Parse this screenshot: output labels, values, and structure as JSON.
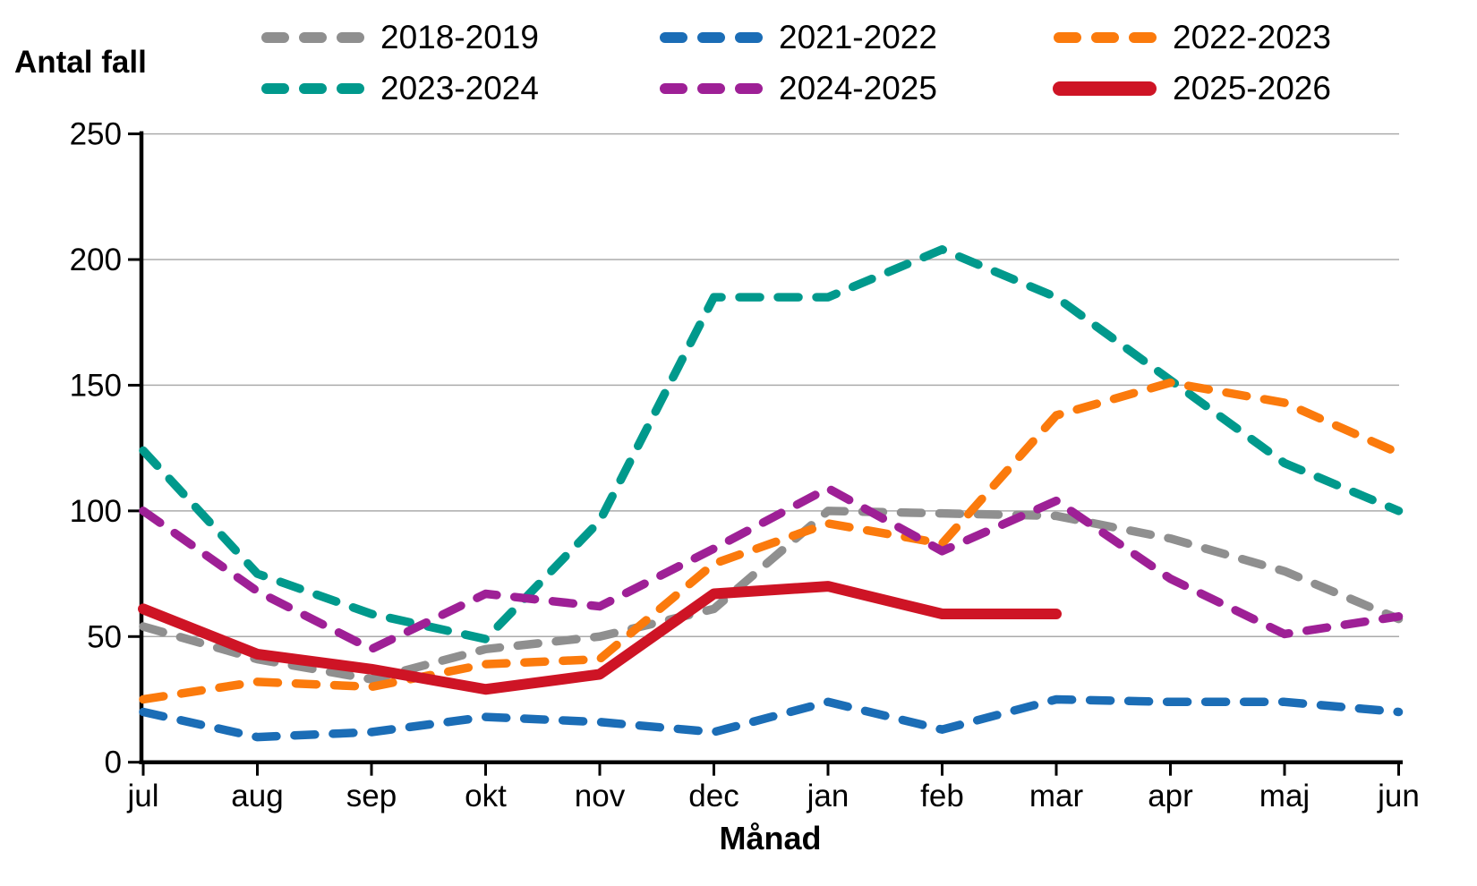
{
  "chart_data": {
    "type": "line",
    "title": "",
    "ylabel": "Antal fall",
    "xlabel": "Månad",
    "categories": [
      "jul",
      "aug",
      "sep",
      "okt",
      "nov",
      "dec",
      "jan",
      "feb",
      "mar",
      "apr",
      "maj",
      "jun"
    ],
    "ylim": [
      0,
      250
    ],
    "yticks": [
      0,
      50,
      100,
      150,
      200,
      250
    ],
    "grid": "horizontal",
    "grid_color": "#ababab",
    "axis_color": "#000000",
    "legend_position": "top",
    "series": [
      {
        "name": "2018-2019",
        "color": "#8f8f8f",
        "style": "dashed",
        "values": [
          54,
          41,
          33,
          45,
          50,
          61,
          100,
          99,
          98,
          89,
          76,
          57
        ]
      },
      {
        "name": "2021-2022",
        "color": "#1b6db6",
        "style": "dashed",
        "values": [
          20,
          10,
          12,
          18,
          16,
          12,
          24,
          13,
          25,
          24,
          24,
          20
        ]
      },
      {
        "name": "2022-2023",
        "color": "#fb7a0c",
        "style": "dashed",
        "values": [
          25,
          32,
          30,
          39,
          41,
          79,
          95,
          87,
          138,
          151,
          143,
          123
        ]
      },
      {
        "name": "2023-2024",
        "color": "#00998c",
        "style": "dashed",
        "values": [
          124,
          75,
          59,
          49,
          96,
          185,
          185,
          204,
          185,
          152,
          119,
          100
        ]
      },
      {
        "name": "2024-2025",
        "color": "#9e2096",
        "style": "dashed",
        "values": [
          100,
          68,
          45,
          67,
          62,
          85,
          109,
          84,
          104,
          73,
          51,
          58
        ]
      },
      {
        "name": "2025-2026",
        "color": "#ce1425",
        "style": "solid",
        "values": [
          61,
          43,
          37,
          29,
          35,
          67,
          70,
          59,
          59,
          null,
          null,
          null
        ]
      }
    ]
  }
}
